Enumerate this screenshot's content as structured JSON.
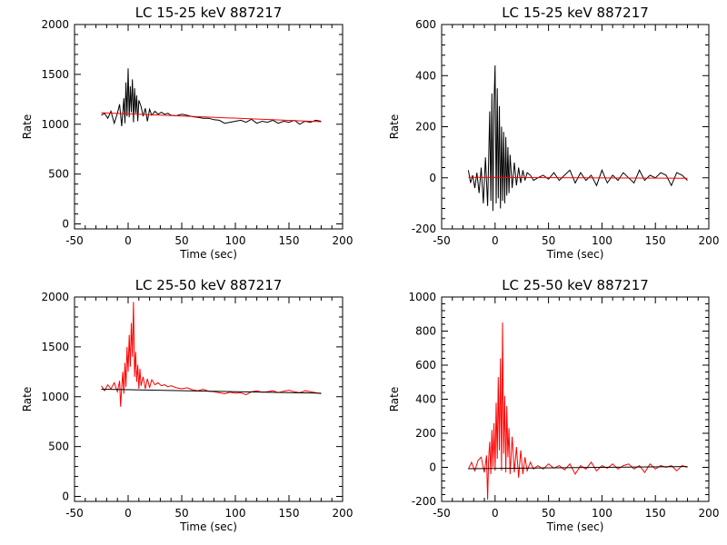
{
  "chart_data": [
    {
      "type": "line",
      "title": "LC 15-25 keV  887217",
      "xlabel": "Time (sec)",
      "ylabel": "Rate",
      "xlim": [
        -50,
        200
      ],
      "ylim": [
        -50,
        2000
      ],
      "xticks": [
        -50,
        0,
        50,
        100,
        150,
        200
      ],
      "yticks": [
        0,
        500,
        1000,
        1500,
        2000
      ],
      "grid": false,
      "series": [
        {
          "color": "#000000",
          "x": [
            -25,
            -22,
            -19,
            -16,
            -13,
            -10,
            -8,
            -6,
            -4,
            -3,
            -2,
            -1,
            0,
            1,
            2,
            3,
            4,
            5,
            6,
            7,
            8,
            9,
            10,
            12,
            14,
            16,
            18,
            20,
            22,
            25,
            28,
            31,
            34,
            37,
            40,
            45,
            50,
            55,
            60,
            65,
            70,
            75,
            80,
            85,
            90,
            95,
            100,
            105,
            110,
            115,
            120,
            125,
            130,
            135,
            140,
            145,
            150,
            155,
            160,
            165,
            170,
            175,
            180
          ],
          "y": [
            1090,
            1110,
            1060,
            1130,
            1010,
            1110,
            1200,
            980,
            1260,
            1010,
            1420,
            1080,
            1560,
            1070,
            1380,
            1120,
            1450,
            1020,
            1360,
            1110,
            1290,
            1030,
            1240,
            1180,
            1080,
            1160,
            1030,
            1150,
            1090,
            1130,
            1100,
            1120,
            1100,
            1110,
            1090,
            1085,
            1100,
            1090,
            1075,
            1070,
            1060,
            1060,
            1045,
            1040,
            1010,
            1020,
            1030,
            1040,
            1020,
            1050,
            1010,
            1030,
            1020,
            1040,
            1010,
            1030,
            1020,
            1040,
            1000,
            1030,
            1020,
            1040,
            1030
          ]
        },
        {
          "color": "#ff0000",
          "x": [
            -25,
            180
          ],
          "y": [
            1115,
            1025
          ]
        }
      ]
    },
    {
      "type": "line",
      "title": "LC 15-25 keV  887217",
      "xlabel": "Time (sec)",
      "ylabel": "Rate",
      "xlim": [
        -50,
        200
      ],
      "ylim": [
        -200,
        600
      ],
      "xticks": [
        -50,
        0,
        50,
        100,
        150,
        200
      ],
      "yticks": [
        -200,
        0,
        200,
        400,
        600
      ],
      "grid": false,
      "series": [
        {
          "color": "#000000",
          "x": [
            -25,
            -23,
            -21,
            -19,
            -17,
            -15,
            -13,
            -11,
            -9,
            -7,
            -5,
            -4,
            -3,
            -2,
            -1,
            0,
            1,
            2,
            3,
            4,
            5,
            6,
            7,
            8,
            9,
            10,
            11,
            12,
            13,
            14,
            16,
            18,
            20,
            22,
            24,
            26,
            28,
            30,
            33,
            36,
            40,
            45,
            50,
            55,
            60,
            65,
            70,
            75,
            80,
            85,
            90,
            95,
            100,
            105,
            110,
            115,
            120,
            125,
            130,
            135,
            140,
            145,
            150,
            155,
            160,
            165,
            170,
            175,
            180
          ],
          "y": [
            30,
            -20,
            10,
            -40,
            20,
            -60,
            40,
            -100,
            80,
            -110,
            260,
            -90,
            330,
            -130,
            290,
            440,
            -100,
            350,
            -80,
            280,
            -120,
            200,
            -90,
            180,
            -100,
            160,
            -70,
            120,
            -60,
            90,
            -40,
            60,
            -30,
            40,
            -20,
            30,
            -10,
            20,
            10,
            -10,
            0,
            10,
            -5,
            20,
            -10,
            10,
            30,
            -20,
            20,
            -10,
            10,
            -30,
            30,
            -20,
            10,
            -10,
            20,
            0,
            -20,
            30,
            -10,
            10,
            0,
            20,
            10,
            -30,
            20,
            10,
            -10
          ]
        },
        {
          "color": "#ff0000",
          "x": [
            -25,
            180
          ],
          "y": [
            2,
            -2
          ]
        }
      ]
    },
    {
      "type": "line",
      "title": "LC 25-50 keV  887217",
      "xlabel": "Time (sec)",
      "ylabel": "Rate",
      "xlim": [
        -50,
        200
      ],
      "ylim": [
        -50,
        2000
      ],
      "xticks": [
        -50,
        0,
        50,
        100,
        150,
        200
      ],
      "yticks": [
        0,
        500,
        1000,
        1500,
        2000
      ],
      "grid": false,
      "series": [
        {
          "color": "#ff0000",
          "x": [
            -25,
            -22,
            -19,
            -16,
            -13,
            -10,
            -8,
            -7,
            -6,
            -5,
            -4,
            -3,
            -2,
            -1,
            0,
            1,
            2,
            3,
            4,
            5,
            6,
            7,
            8,
            9,
            10,
            11,
            12,
            14,
            16,
            18,
            20,
            22,
            25,
            28,
            31,
            34,
            37,
            40,
            45,
            50,
            55,
            60,
            65,
            70,
            75,
            80,
            85,
            90,
            95,
            100,
            105,
            110,
            115,
            120,
            125,
            130,
            135,
            140,
            145,
            150,
            155,
            160,
            165,
            170,
            175,
            180
          ],
          "y": [
            1110,
            1060,
            1120,
            1080,
            1140,
            1050,
            1160,
            900,
            1090,
            1250,
            1030,
            1340,
            1100,
            1500,
            1250,
            1620,
            1300,
            1740,
            1400,
            1950,
            1200,
            1450,
            1150,
            1320,
            1080,
            1280,
            1110,
            1200,
            1080,
            1180,
            1090,
            1170,
            1120,
            1140,
            1110,
            1120,
            1100,
            1110,
            1090,
            1080,
            1090,
            1070,
            1060,
            1075,
            1055,
            1050,
            1040,
            1030,
            1045,
            1035,
            1040,
            1020,
            1050,
            1060,
            1045,
            1050,
            1060,
            1040,
            1055,
            1065,
            1050,
            1040,
            1060,
            1050,
            1040,
            1030
          ]
        },
        {
          "color": "#000000",
          "x": [
            -25,
            180
          ],
          "y": [
            1075,
            1035
          ]
        }
      ]
    },
    {
      "type": "line",
      "title": "LC 25-50 keV  887217",
      "xlabel": "Time (sec)",
      "ylabel": "Rate",
      "xlim": [
        -50,
        200
      ],
      "ylim": [
        -200,
        1000
      ],
      "xticks": [
        -50,
        0,
        50,
        100,
        150,
        200
      ],
      "yticks": [
        -200,
        0,
        200,
        400,
        600,
        800,
        1000
      ],
      "grid": false,
      "series": [
        {
          "color": "#ff0000",
          "x": [
            -25,
            -22,
            -19,
            -16,
            -13,
            -10,
            -8,
            -7,
            -6,
            -5,
            -4,
            -3,
            -2,
            -1,
            0,
            1,
            2,
            3,
            4,
            5,
            6,
            7,
            8,
            9,
            10,
            11,
            12,
            13,
            14,
            16,
            18,
            20,
            22,
            24,
            26,
            28,
            30,
            33,
            36,
            40,
            45,
            50,
            55,
            60,
            65,
            70,
            75,
            80,
            85,
            90,
            95,
            100,
            105,
            110,
            115,
            120,
            125,
            130,
            135,
            140,
            145,
            150,
            155,
            160,
            165,
            170,
            175,
            180
          ],
          "y": [
            -10,
            30,
            -20,
            40,
            60,
            -30,
            70,
            -190,
            50,
            150,
            -40,
            220,
            0,
            260,
            -20,
            380,
            50,
            530,
            100,
            640,
            -20,
            850,
            80,
            420,
            -30,
            360,
            60,
            230,
            -40,
            180,
            -30,
            120,
            -60,
            100,
            -40,
            60,
            -20,
            30,
            -10,
            10,
            -10,
            20,
            -5,
            10,
            -15,
            20,
            -40,
            10,
            -10,
            30,
            -20,
            10,
            -5,
            20,
            -10,
            10,
            20,
            -10,
            10,
            -30,
            20,
            -10,
            10,
            0,
            10,
            -20,
            10,
            0
          ]
        },
        {
          "color": "#000000",
          "x": [
            -25,
            180
          ],
          "y": [
            -8,
            5
          ]
        }
      ]
    }
  ]
}
